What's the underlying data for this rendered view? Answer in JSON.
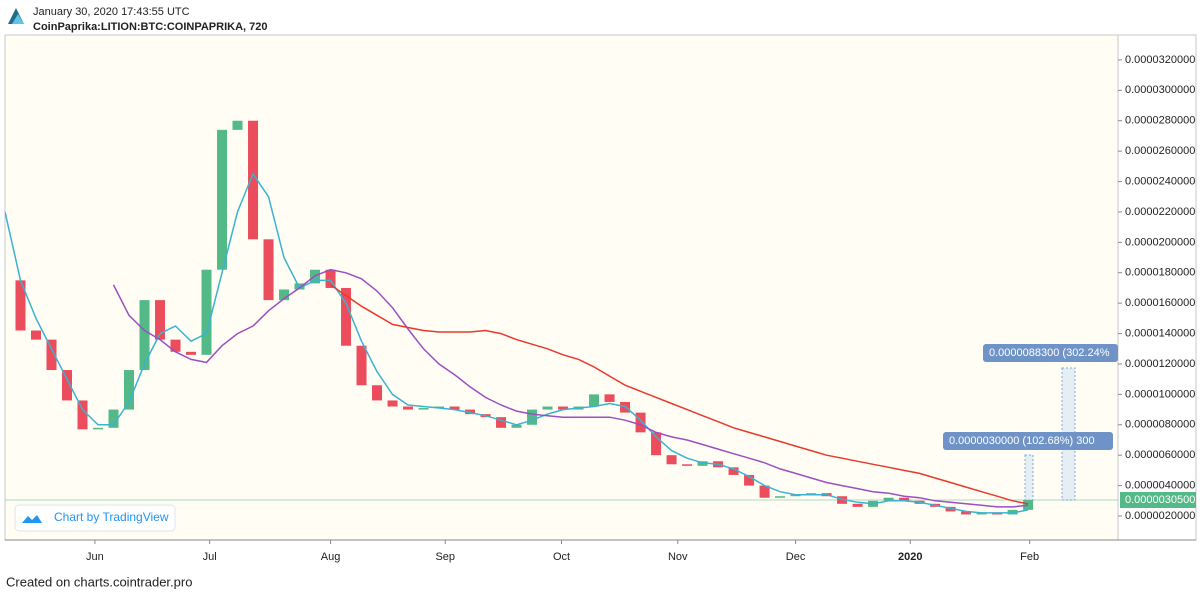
{
  "header": {
    "timestamp": "January 30, 2020 17:43:55 UTC",
    "symbol": "CoinPaprika:LITION:BTC:COINPAPRIKA, 720"
  },
  "watermark": "Chart by TradingView",
  "footer": "Created on charts.cointrader.pro",
  "chart_data": {
    "type": "candlestick",
    "xlim": [
      0,
      71.8
    ],
    "xticks": [
      {
        "value": 5.8,
        "label": "Jun"
      },
      {
        "value": 13.2,
        "label": "Jul"
      },
      {
        "value": 21,
        "label": "Aug"
      },
      {
        "value": 28.4,
        "label": "Sep"
      },
      {
        "value": 35.9,
        "label": "Oct"
      },
      {
        "value": 43.4,
        "label": "Nov"
      },
      {
        "value": 51,
        "label": "Dec"
      },
      {
        "value": 58.4,
        "label": "2020",
        "bold": true
      },
      {
        "value": 66.1,
        "label": "Feb"
      }
    ],
    "ylim": [
      4.2e-07,
      3.364e-05
    ],
    "yticks": [
      {
        "value": 2e-06,
        "label": "0.0000020000"
      },
      {
        "value": 4e-06,
        "label": "0.0000040000"
      },
      {
        "value": 6e-06,
        "label": "0.0000060000"
      },
      {
        "value": 8e-06,
        "label": "0.0000080000"
      },
      {
        "value": 1e-05,
        "label": "0.0000100000"
      },
      {
        "value": 1.2e-05,
        "label": "0.0000120000"
      },
      {
        "value": 1.4e-05,
        "label": "0.0000140000"
      },
      {
        "value": 1.6e-05,
        "label": "0.0000160000"
      },
      {
        "value": 1.8e-05,
        "label": "0.0000180000"
      },
      {
        "value": 2e-05,
        "label": "0.0000200000"
      },
      {
        "value": 2.2e-05,
        "label": "0.0000220000"
      },
      {
        "value": 2.4e-05,
        "label": "0.0000240000"
      },
      {
        "value": 2.6e-05,
        "label": "0.0000260000"
      },
      {
        "value": 2.8e-05,
        "label": "0.0000280000"
      },
      {
        "value": 3e-05,
        "label": "0.0000300000"
      },
      {
        "value": 3.2e-05,
        "label": "0.0000320000"
      }
    ],
    "grid": false,
    "last_price": {
      "value": 3.05e-06,
      "label": "0.0000030500",
      "color": "#53b987"
    },
    "annotations": [
      {
        "label": "0.0000088300 (302.24%"
      },
      {
        "label": "0.0000030000 (102.68%) 300"
      }
    ],
    "series": [
      {
        "type": "candlestick",
        "up_color": "#53b987",
        "down_color": "#eb4d5c",
        "values": [
          1.75e-05,
          1.42e-05,
          1.36e-05,
          1.16e-05,
          9.6e-06,
          7.7e-06,
          7.8e-06,
          9e-06,
          1.16e-05,
          1.62e-05,
          1.36e-05,
          1.28e-05,
          1.26e-05,
          1.82e-05,
          2.74e-05,
          2.8e-05,
          2.02e-05,
          1.62e-05,
          1.69e-05,
          1.73e-05,
          1.82e-05,
          1.7e-05,
          1.32e-05,
          1.06e-05,
          9.6e-06,
          9.2e-06,
          9e-06,
          9.1e-06,
          9.2e-06,
          9e-06,
          8.7e-06,
          8.5e-06,
          7.8e-06,
          8e-06,
          9e-06,
          9.2e-06,
          9e-06,
          9.2e-06,
          1e-05,
          9.5e-06,
          8.8e-06,
          7.5e-06,
          6e-06,
          5.4e-06,
          5.3e-06,
          5.6e-06,
          5.2e-06,
          4.7e-06,
          4e-06,
          3.2e-06,
          3.3e-06,
          3.4e-06,
          3.5e-06,
          3.3e-06,
          2.8e-06,
          2.6e-06,
          3e-06,
          3.2e-06,
          3e-06,
          2.8e-06,
          2.6e-06,
          2.3e-06,
          2.1e-06,
          2.2e-06,
          2.1e-06,
          2.4e-06,
          3.05e-06
        ]
      },
      {
        "type": "line",
        "color": "#3bb3d0",
        "values": [
          2.2e-05,
          1.75e-05,
          1.5e-05,
          1.3e-05,
          1.1e-05,
          9e-06,
          8e-06,
          8e-06,
          9.5e-06,
          1.2e-05,
          1.4e-05,
          1.45e-05,
          1.35e-05,
          1.4e-05,
          1.8e-05,
          2.2e-05,
          2.45e-05,
          2.3e-05,
          1.9e-05,
          1.7e-05,
          1.75e-05,
          1.75e-05,
          1.6e-05,
          1.35e-05,
          1.15e-05,
          1e-05,
          9.3e-06,
          9.2e-06,
          9.1e-06,
          9e-06,
          8.8e-06,
          8.6e-06,
          8.3e-06,
          8e-06,
          8.3e-06,
          8.7e-06,
          9e-06,
          9.1e-06,
          9.2e-06,
          9.4e-06,
          9.2e-06,
          8.3e-06,
          7.2e-06,
          6.3e-06,
          5.8e-06,
          5.5e-06,
          5.4e-06,
          5.1e-06,
          4.6e-06,
          4e-06,
          3.6e-06,
          3.4e-06,
          3.4e-06,
          3.4e-06,
          3.1e-06,
          2.9e-06,
          2.8e-06,
          3e-06,
          3e-06,
          2.9e-06,
          2.7e-06,
          2.5e-06,
          2.3e-06,
          2.2e-06,
          2.2e-06,
          2.2e-06,
          2.4e-06
        ]
      },
      {
        "type": "line",
        "color": "#9c4fc1",
        "values": [
          null,
          null,
          null,
          null,
          null,
          null,
          null,
          1.72e-05,
          1.52e-05,
          1.42e-05,
          1.36e-05,
          1.28e-05,
          1.23e-05,
          1.21e-05,
          1.32e-05,
          1.4e-05,
          1.45e-05,
          1.55e-05,
          1.63e-05,
          1.7e-05,
          1.78e-05,
          1.82e-05,
          1.8e-05,
          1.76e-05,
          1.68e-05,
          1.57e-05,
          1.43e-05,
          1.3e-05,
          1.2e-05,
          1.13e-05,
          1.05e-05,
          9.8e-06,
          9.3e-06,
          8.9e-06,
          8.7e-06,
          8.6e-06,
          8.5e-06,
          8.5e-06,
          8.5e-06,
          8.5e-06,
          8.3e-06,
          8e-06,
          7.5e-06,
          7.2e-06,
          7e-06,
          6.7e-06,
          6.4e-06,
          6.1e-06,
          5.8e-06,
          5.5e-06,
          5.1e-06,
          4.8e-06,
          4.5e-06,
          4.2e-06,
          4e-06,
          3.8e-06,
          3.6e-06,
          3.5e-06,
          3.3e-06,
          3.2e-06,
          3e-06,
          2.9e-06,
          2.8e-06,
          2.7e-06,
          2.6e-06,
          2.6e-06,
          2.7e-06
        ]
      },
      {
        "type": "line",
        "color": "#e8392b",
        "values": [
          null,
          null,
          null,
          null,
          null,
          null,
          null,
          null,
          null,
          null,
          null,
          null,
          null,
          null,
          null,
          null,
          null,
          null,
          null,
          null,
          null,
          1.72e-05,
          1.65e-05,
          1.58e-05,
          1.52e-05,
          1.46e-05,
          1.44e-05,
          1.42e-05,
          1.41e-05,
          1.41e-05,
          1.41e-05,
          1.42e-05,
          1.4e-05,
          1.36e-05,
          1.33e-05,
          1.3e-05,
          1.26e-05,
          1.23e-05,
          1.18e-05,
          1.12e-05,
          1.06e-05,
          1.02e-05,
          9.8e-06,
          9.4e-06,
          9e-06,
          8.6e-06,
          8.2e-06,
          7.8e-06,
          7.5e-06,
          7.2e-06,
          6.9e-06,
          6.6e-06,
          6.3e-06,
          6e-06,
          5.8e-06,
          5.6e-06,
          5.4e-06,
          5.2e-06,
          5e-06,
          4.8e-06,
          4.5e-06,
          4.2e-06,
          3.9e-06,
          3.6e-06,
          3.3e-06,
          3e-06,
          2.8e-06
        ]
      }
    ]
  }
}
